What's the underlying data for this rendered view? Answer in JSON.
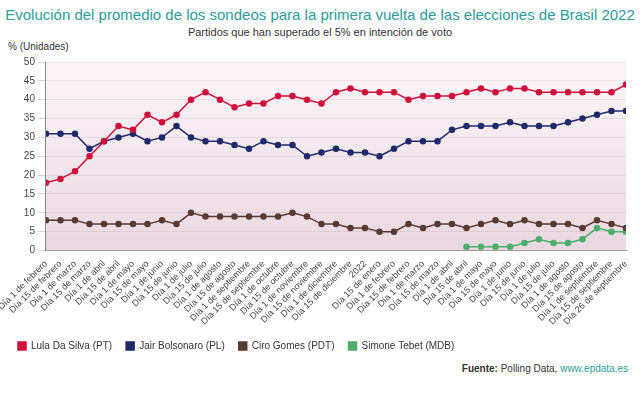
{
  "chart_data": {
    "type": "line",
    "title": "Evolución del promedio de los sondeos para la primera vuelta de las elecciones de Brasil 2022",
    "subtitle": "Partidos que han superado el 5% en intención de voto",
    "y_label": "% (Unidades)",
    "source_label": "Fuente:",
    "source": "Polling Data,",
    "source_url": "www.epdata.es",
    "categories": [
      "Día 1 de febrero",
      "Día 15 de febrero",
      "Día 1 de marzo",
      "Día 15 de marzo",
      "Día 1 de abril",
      "Día 15 de abril",
      "Día 1 de mayo",
      "Día 15 de mayo",
      "Día 1 de junio",
      "Día 15 de junio",
      "Día 1 de julio",
      "Día 15 de julio",
      "Día 1 de agosto",
      "Día 15 de agosto",
      "Día 1 de septiembre",
      "Día 15 de septiembre",
      "Día 1 de octubre",
      "Día 15 de octubre",
      "Día 1 de noviembre",
      "Día 15 de noviembre",
      "Día 1 de diciembre",
      "Día 15 de diciembre",
      "2022",
      "Día 15 de enero",
      "Día 1 de febrero",
      "Día 15 de febrero",
      "Día 1 de marzo",
      "Día 15 de marzo",
      "Día 1 de abril",
      "Día 15 de abril",
      "Día 1 de mayo",
      "Día 15 de mayo",
      "Día 1 de junio",
      "Día 15 de junio",
      "Día 1 de julio",
      "Día 15 de julio",
      "Día 1 de agosto",
      "Día 15 de agosto",
      "Día 1 de septiembre",
      "Día 15 de septiembre",
      "Día 26 de septiembre"
    ],
    "series": [
      {
        "name": "Lula Da Silva (PT)",
        "color": "#d0103a",
        "marker": "circle",
        "values": [
          18,
          19,
          21,
          25,
          29,
          33,
          32,
          36,
          34,
          36,
          40,
          42,
          40,
          38,
          39,
          39,
          41,
          41,
          40,
          39,
          42,
          43,
          42,
          42,
          42,
          40,
          41,
          41,
          41,
          42,
          43,
          42,
          43,
          43,
          42,
          42,
          42,
          42,
          42,
          42,
          44
        ]
      },
      {
        "name": "Jair Bolsonaro (PL)",
        "color": "#1f2a6b",
        "marker": "circle",
        "values": [
          31,
          31,
          31,
          27,
          29,
          30,
          31,
          29,
          30,
          33,
          30,
          29,
          29,
          28,
          27,
          29,
          28,
          28,
          25,
          26,
          27,
          26,
          26,
          25,
          27,
          29,
          29,
          29,
          32,
          33,
          33,
          33,
          34,
          33,
          33,
          33,
          34,
          35,
          36,
          37,
          37
        ]
      },
      {
        "name": "Ciro Gomes (PDT)",
        "color": "#5a3a30",
        "marker": "circle",
        "values": [
          8,
          8,
          8,
          7,
          7,
          7,
          7,
          7,
          8,
          7,
          10,
          9,
          9,
          9,
          9,
          9,
          9,
          10,
          9,
          7,
          7,
          6,
          6,
          5,
          5,
          7,
          6,
          7,
          7,
          6,
          7,
          8,
          7,
          8,
          7,
          7,
          7,
          6,
          8,
          7,
          6
        ]
      },
      {
        "name": "Simone Tebet (MDB)",
        "color": "#4cae6a",
        "marker": "circle",
        "values": [
          null,
          null,
          null,
          null,
          null,
          null,
          null,
          null,
          null,
          null,
          null,
          null,
          null,
          null,
          null,
          null,
          null,
          null,
          null,
          null,
          null,
          null,
          null,
          null,
          null,
          null,
          null,
          null,
          null,
          1,
          1,
          1,
          1,
          2,
          3,
          2,
          2,
          3,
          6,
          5,
          5
        ]
      }
    ],
    "ylim": [
      0,
      50
    ],
    "yticks": [
      0,
      5,
      10,
      15,
      20,
      25,
      30,
      35,
      40,
      45,
      50
    ],
    "grid": true,
    "legend": "bottom"
  }
}
